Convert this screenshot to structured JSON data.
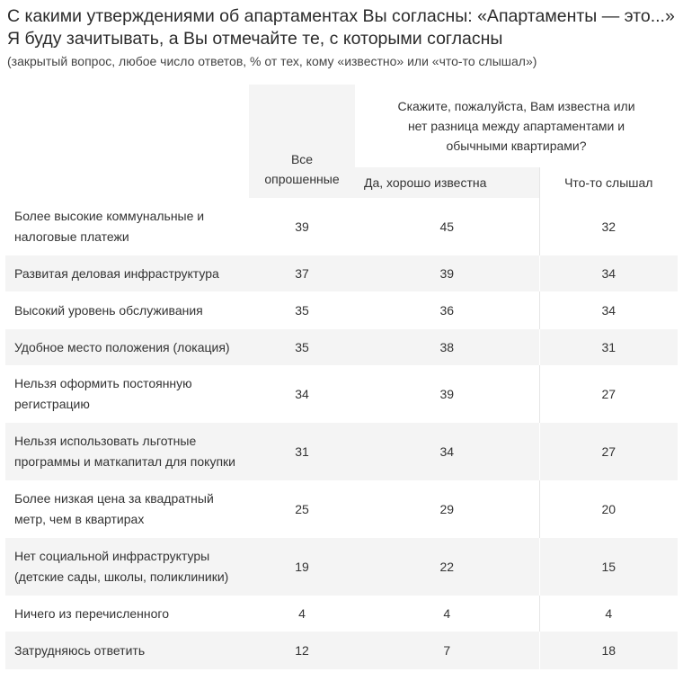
{
  "title": "С какими утверждениями об апартаментах Вы согласны: «Апартаменты — это...» Я буду зачитывать, а Вы отмечайте те, с которыми согласны",
  "subtitle": "(закрытый вопрос, любое число ответов, % от тех, кому «известно» или «что-то слышал»)",
  "chart_data": {
    "type": "table",
    "columns": {
      "all": "Все опрошенные",
      "group_header": "Скажите, пожалуйста, Вам известна или нет разница между апартаментами и обычными квартирами?",
      "known": "Да, хорошо известна",
      "heard": "Что-то слышал"
    },
    "rows": [
      {
        "label": "Более высокие коммунальные и налоговые платежи",
        "all": 39,
        "known": 45,
        "heard": 32
      },
      {
        "label": "Развитая деловая инфраструктура",
        "all": 37,
        "known": 39,
        "heard": 34
      },
      {
        "label": "Высокий уровень обслуживания",
        "all": 35,
        "known": 36,
        "heard": 34
      },
      {
        "label": "Удобное место положения (локация)",
        "all": 35,
        "known": 38,
        "heard": 31
      },
      {
        "label": "Нельзя оформить постоянную регистрацию",
        "all": 34,
        "known": 39,
        "heard": 27
      },
      {
        "label": "Нельзя использовать льготные программы и маткапитал для покупки",
        "all": 31,
        "known": 34,
        "heard": 27
      },
      {
        "label": "Более низкая цена за квадратный метр, чем в квартирах",
        "all": 25,
        "known": 29,
        "heard": 20
      },
      {
        "label": "Нет социальной инфраструктуры (детские сады, школы, поликлиники)",
        "all": 19,
        "known": 22,
        "heard": 15
      },
      {
        "label": "Ничего из перечисленного",
        "all": 4,
        "known": 4,
        "heard": 4
      },
      {
        "label": "Затрудняюсь ответить",
        "all": 12,
        "known": 7,
        "heard": 18
      }
    ]
  }
}
